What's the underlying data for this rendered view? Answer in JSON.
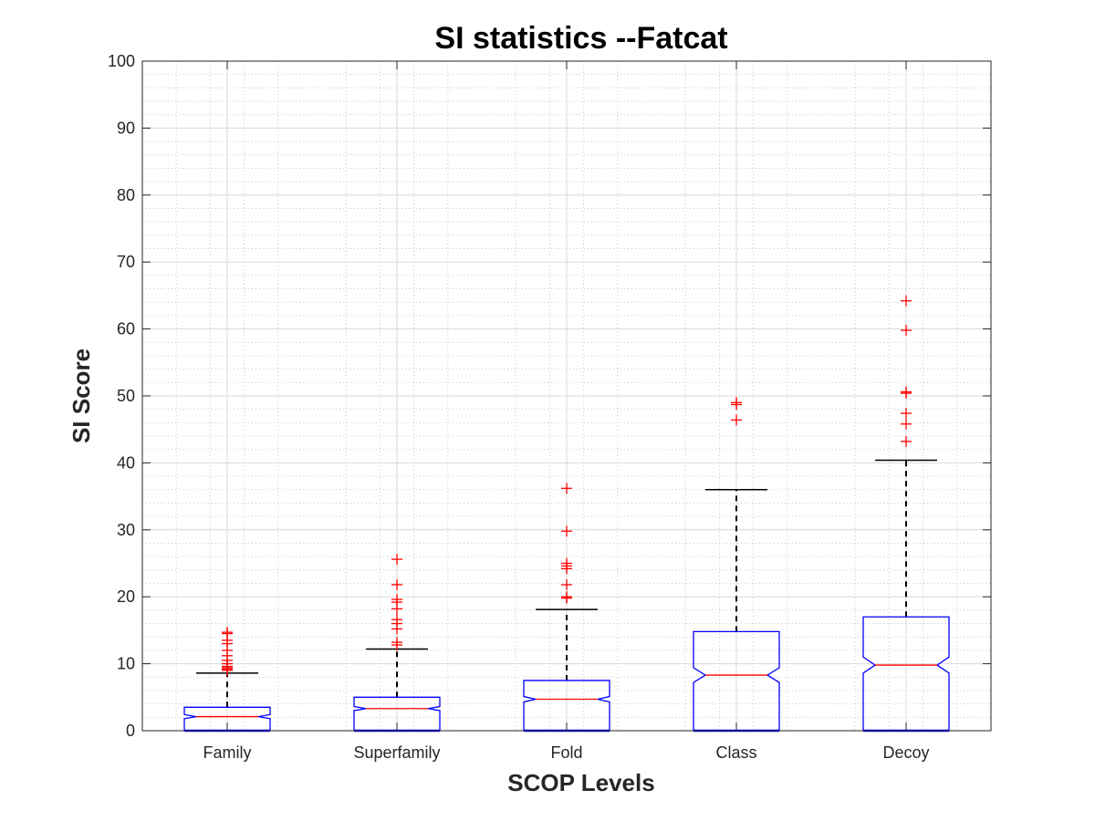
{
  "chart_data": {
    "type": "boxplot",
    "title": "SI statistics --Fatcat",
    "xlabel": "SCOP Levels",
    "ylabel": "SI Score",
    "ylim": [
      0,
      100
    ],
    "yticks": [
      0,
      10,
      20,
      30,
      40,
      50,
      60,
      70,
      80,
      90,
      100
    ],
    "grid": "major and minor",
    "notched": true,
    "categories": [
      "Family",
      "Superfamily",
      "Fold",
      "Class",
      "Decoy"
    ],
    "boxes": [
      {
        "name": "Family",
        "min": 0,
        "q1": 0,
        "median": 2.1,
        "q3": 3.5,
        "notch_low": 1.8,
        "notch_high": 2.4,
        "whisker_high": 8.6,
        "outliers": [
          9.0,
          9.2,
          9.4,
          9.6,
          10.0,
          10.5,
          11.2,
          12.0,
          13.0,
          13.5,
          14.5,
          14.7
        ]
      },
      {
        "name": "Superfamily",
        "min": 0,
        "q1": 0,
        "median": 3.3,
        "q3": 5.0,
        "notch_low": 3.0,
        "notch_high": 3.6,
        "whisker_high": 12.2,
        "outliers": [
          12.8,
          13.2,
          15.2,
          16.0,
          16.6,
          18.2,
          19.2,
          19.6,
          21.8,
          25.6
        ]
      },
      {
        "name": "Fold",
        "min": 0,
        "q1": 0,
        "median": 4.7,
        "q3": 7.5,
        "notch_low": 4.3,
        "notch_high": 5.1,
        "whisker_high": 18.1,
        "outliers": [
          19.8,
          20.0,
          21.8,
          24.2,
          24.6,
          25.0,
          29.8,
          36.2
        ]
      },
      {
        "name": "Class",
        "min": 0,
        "q1": 0,
        "median": 8.3,
        "q3": 14.8,
        "notch_low": 7.2,
        "notch_high": 9.4,
        "whisker_high": 36.0,
        "outliers": [
          46.4,
          48.7,
          49.0
        ]
      },
      {
        "name": "Decoy",
        "min": 0,
        "q1": 0,
        "median": 9.8,
        "q3": 17.0,
        "notch_low": 8.6,
        "notch_high": 11.0,
        "whisker_high": 40.4,
        "outliers": [
          43.2,
          45.8,
          47.4,
          50.4,
          50.6,
          59.8,
          64.2
        ]
      }
    ]
  },
  "colors": {
    "box": "#0000ff",
    "median": "#ff0000",
    "outlier": "#ff0000",
    "whisker": "#000000",
    "grid_major": "#d9d9d9",
    "grid_minor": "#c8c8c8",
    "axis": "#262626"
  }
}
